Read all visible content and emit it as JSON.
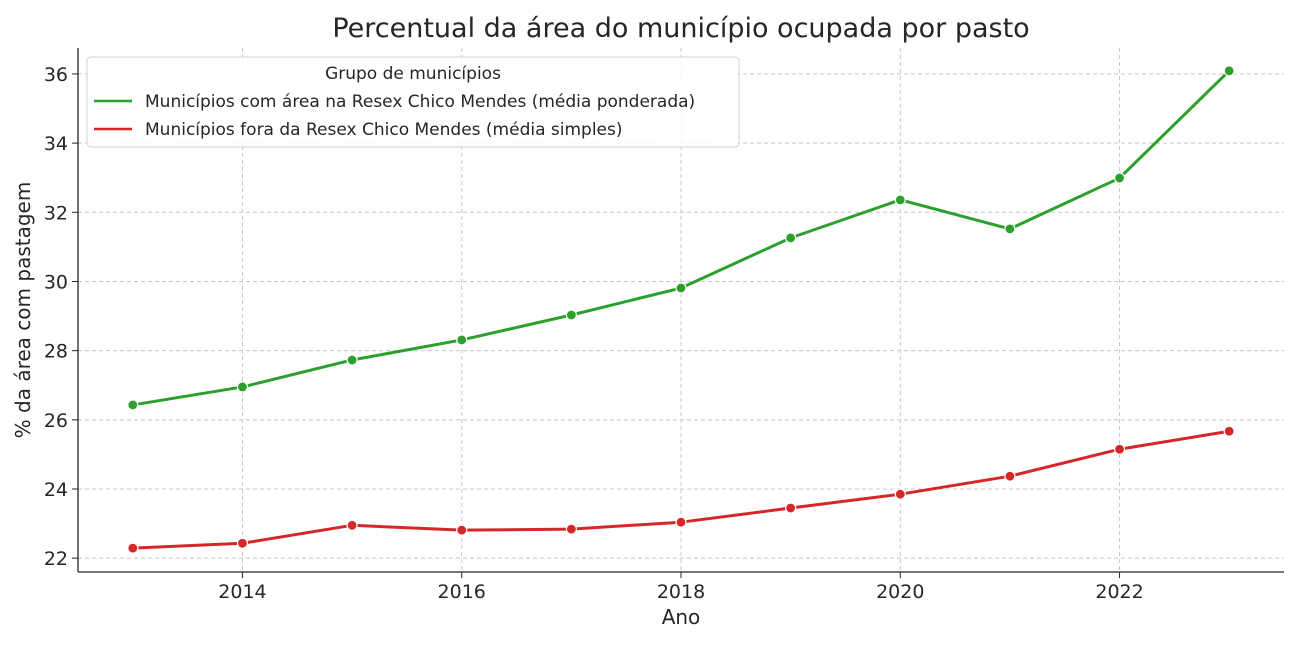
{
  "chart_data": {
    "type": "line",
    "title": "Percentual da área do município ocupada por pasto",
    "xlabel": "Ano",
    "ylabel": "% da área com pastagem",
    "xlim": [
      2012.5,
      2023.5
    ],
    "ylim": [
      21.6,
      36.75
    ],
    "xticks": [
      2014,
      2016,
      2018,
      2020,
      2022
    ],
    "yticks": [
      22,
      24,
      26,
      28,
      30,
      32,
      34,
      36
    ],
    "grid": true,
    "legend": {
      "title": "Grupo de municípios",
      "placement": "top-left"
    },
    "x": [
      2013,
      2014,
      2015,
      2016,
      2017,
      2018,
      2019,
      2020,
      2021,
      2022,
      2023
    ],
    "series": [
      {
        "name": "Municípios com área na Resex Chico Mendes (média ponderada)",
        "color": "#2ca02c",
        "values": [
          26.43,
          26.95,
          27.73,
          28.31,
          29.03,
          29.81,
          31.26,
          32.36,
          31.52,
          32.99,
          36.09
        ]
      },
      {
        "name": "Municípios fora da Resex Chico Mendes (média simples)",
        "color": "#d62728",
        "values": [
          22.29,
          22.43,
          22.95,
          22.81,
          22.84,
          23.04,
          23.45,
          23.85,
          24.37,
          25.15,
          25.67
        ]
      }
    ]
  }
}
